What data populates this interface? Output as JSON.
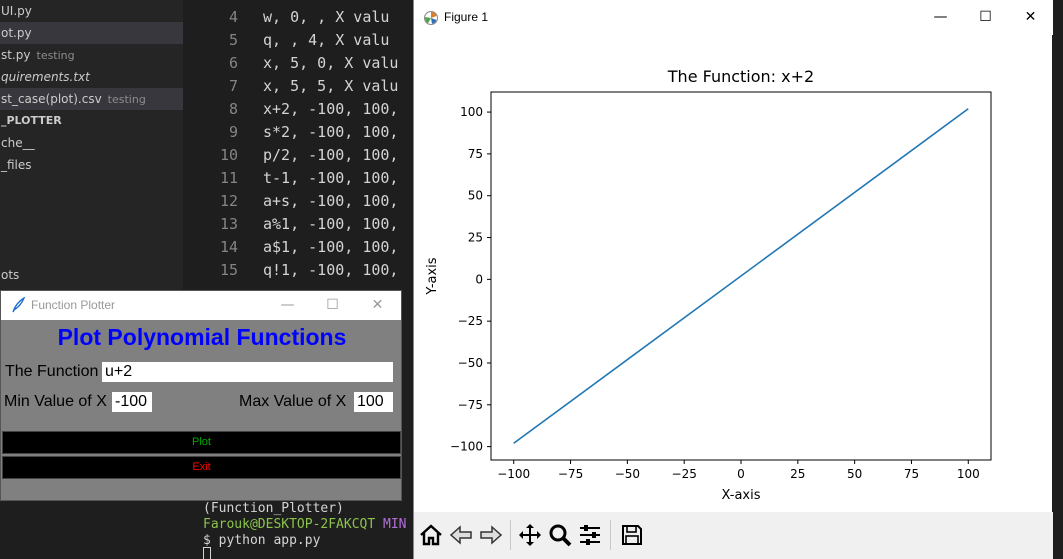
{
  "sidebar": {
    "items": [
      {
        "label": "UI.py",
        "tag": "",
        "selected": false
      },
      {
        "label": "ot.py",
        "tag": "",
        "selected": true
      },
      {
        "label": "st.py",
        "tag": "testing",
        "selected": false
      },
      {
        "label": "quirements.txt",
        "tag": "",
        "selected": false
      },
      {
        "label": "st_case(plot).csv",
        "tag": "testing",
        "selected": true
      },
      {
        "label": "_PLOTTER",
        "tag": "",
        "selected": false
      },
      {
        "label": "che__",
        "tag": "",
        "selected": false
      },
      {
        "label": "_files",
        "tag": "",
        "selected": false
      },
      {
        "label": "ots",
        "tag": "",
        "selected": false
      }
    ]
  },
  "editor": {
    "lines": [
      {
        "num": "4",
        "text": "w, 0,  , X valu"
      },
      {
        "num": "5",
        "text": "q,  , 4, X valu"
      },
      {
        "num": "6",
        "text": "x, 5, 0, X valu"
      },
      {
        "num": "7",
        "text": "x, 5, 5, X valu"
      },
      {
        "num": "8",
        "text": "x+2, -100, 100,"
      },
      {
        "num": "9",
        "text": "s*2, -100, 100,"
      },
      {
        "num": "10",
        "text": "p/2, -100, 100,"
      },
      {
        "num": "11",
        "text": "t-1, -100, 100,"
      },
      {
        "num": "12",
        "text": "a+s, -100, 100,"
      },
      {
        "num": "13",
        "text": "a%1, -100, 100,"
      },
      {
        "num": "14",
        "text": "a$1, -100, 100,"
      },
      {
        "num": "15",
        "text": "q!1, -100, 100,"
      }
    ]
  },
  "terminal": {
    "venv": "(Function_Plotter)",
    "user": "Farouk@DESKTOP-2FAKCQT",
    "mingw": "MIN",
    "command": "$ python app.py"
  },
  "function_plotter": {
    "window_title": "Function Plotter",
    "heading": "Plot Polynomial Functions",
    "function_label": "The Function",
    "function_value": "u+2",
    "min_label": "Min Value of X",
    "min_value": "-100",
    "max_label": "Max Value of X",
    "max_value": "100",
    "plot_button": "Plot",
    "exit_button": "Exit",
    "colors": {
      "heading": "#0000ff",
      "plot_text": "#00aa00",
      "exit_text": "#ff0000",
      "bg": "#808080"
    }
  },
  "figure": {
    "window_title": "Figure 1",
    "toolbar": [
      "home-icon",
      "back-icon",
      "forward-icon",
      "pan-icon",
      "zoom-icon",
      "configure-subplots-icon",
      "save-icon"
    ]
  },
  "chart_data": {
    "type": "line",
    "title": "The Function: x+2",
    "xlabel": "X-axis",
    "ylabel": "Y-axis",
    "x": [
      -100,
      100
    ],
    "series": [
      {
        "values": [
          -98,
          102
        ],
        "color": "#1f77b4"
      }
    ],
    "xlim": [
      -110,
      110
    ],
    "ylim": [
      -108,
      112
    ],
    "xticks": [
      -100,
      -75,
      -50,
      -25,
      0,
      25,
      50,
      75,
      100
    ],
    "yticks": [
      -100,
      -75,
      -50,
      -25,
      0,
      25,
      50,
      75,
      100
    ],
    "xtick_labels": [
      "−100",
      "−75",
      "−50",
      "−25",
      "0",
      "25",
      "50",
      "75",
      "100"
    ],
    "ytick_labels": [
      "−100",
      "−75",
      "−50",
      "−25",
      "0",
      "25",
      "50",
      "75",
      "100"
    ],
    "grid": false
  }
}
